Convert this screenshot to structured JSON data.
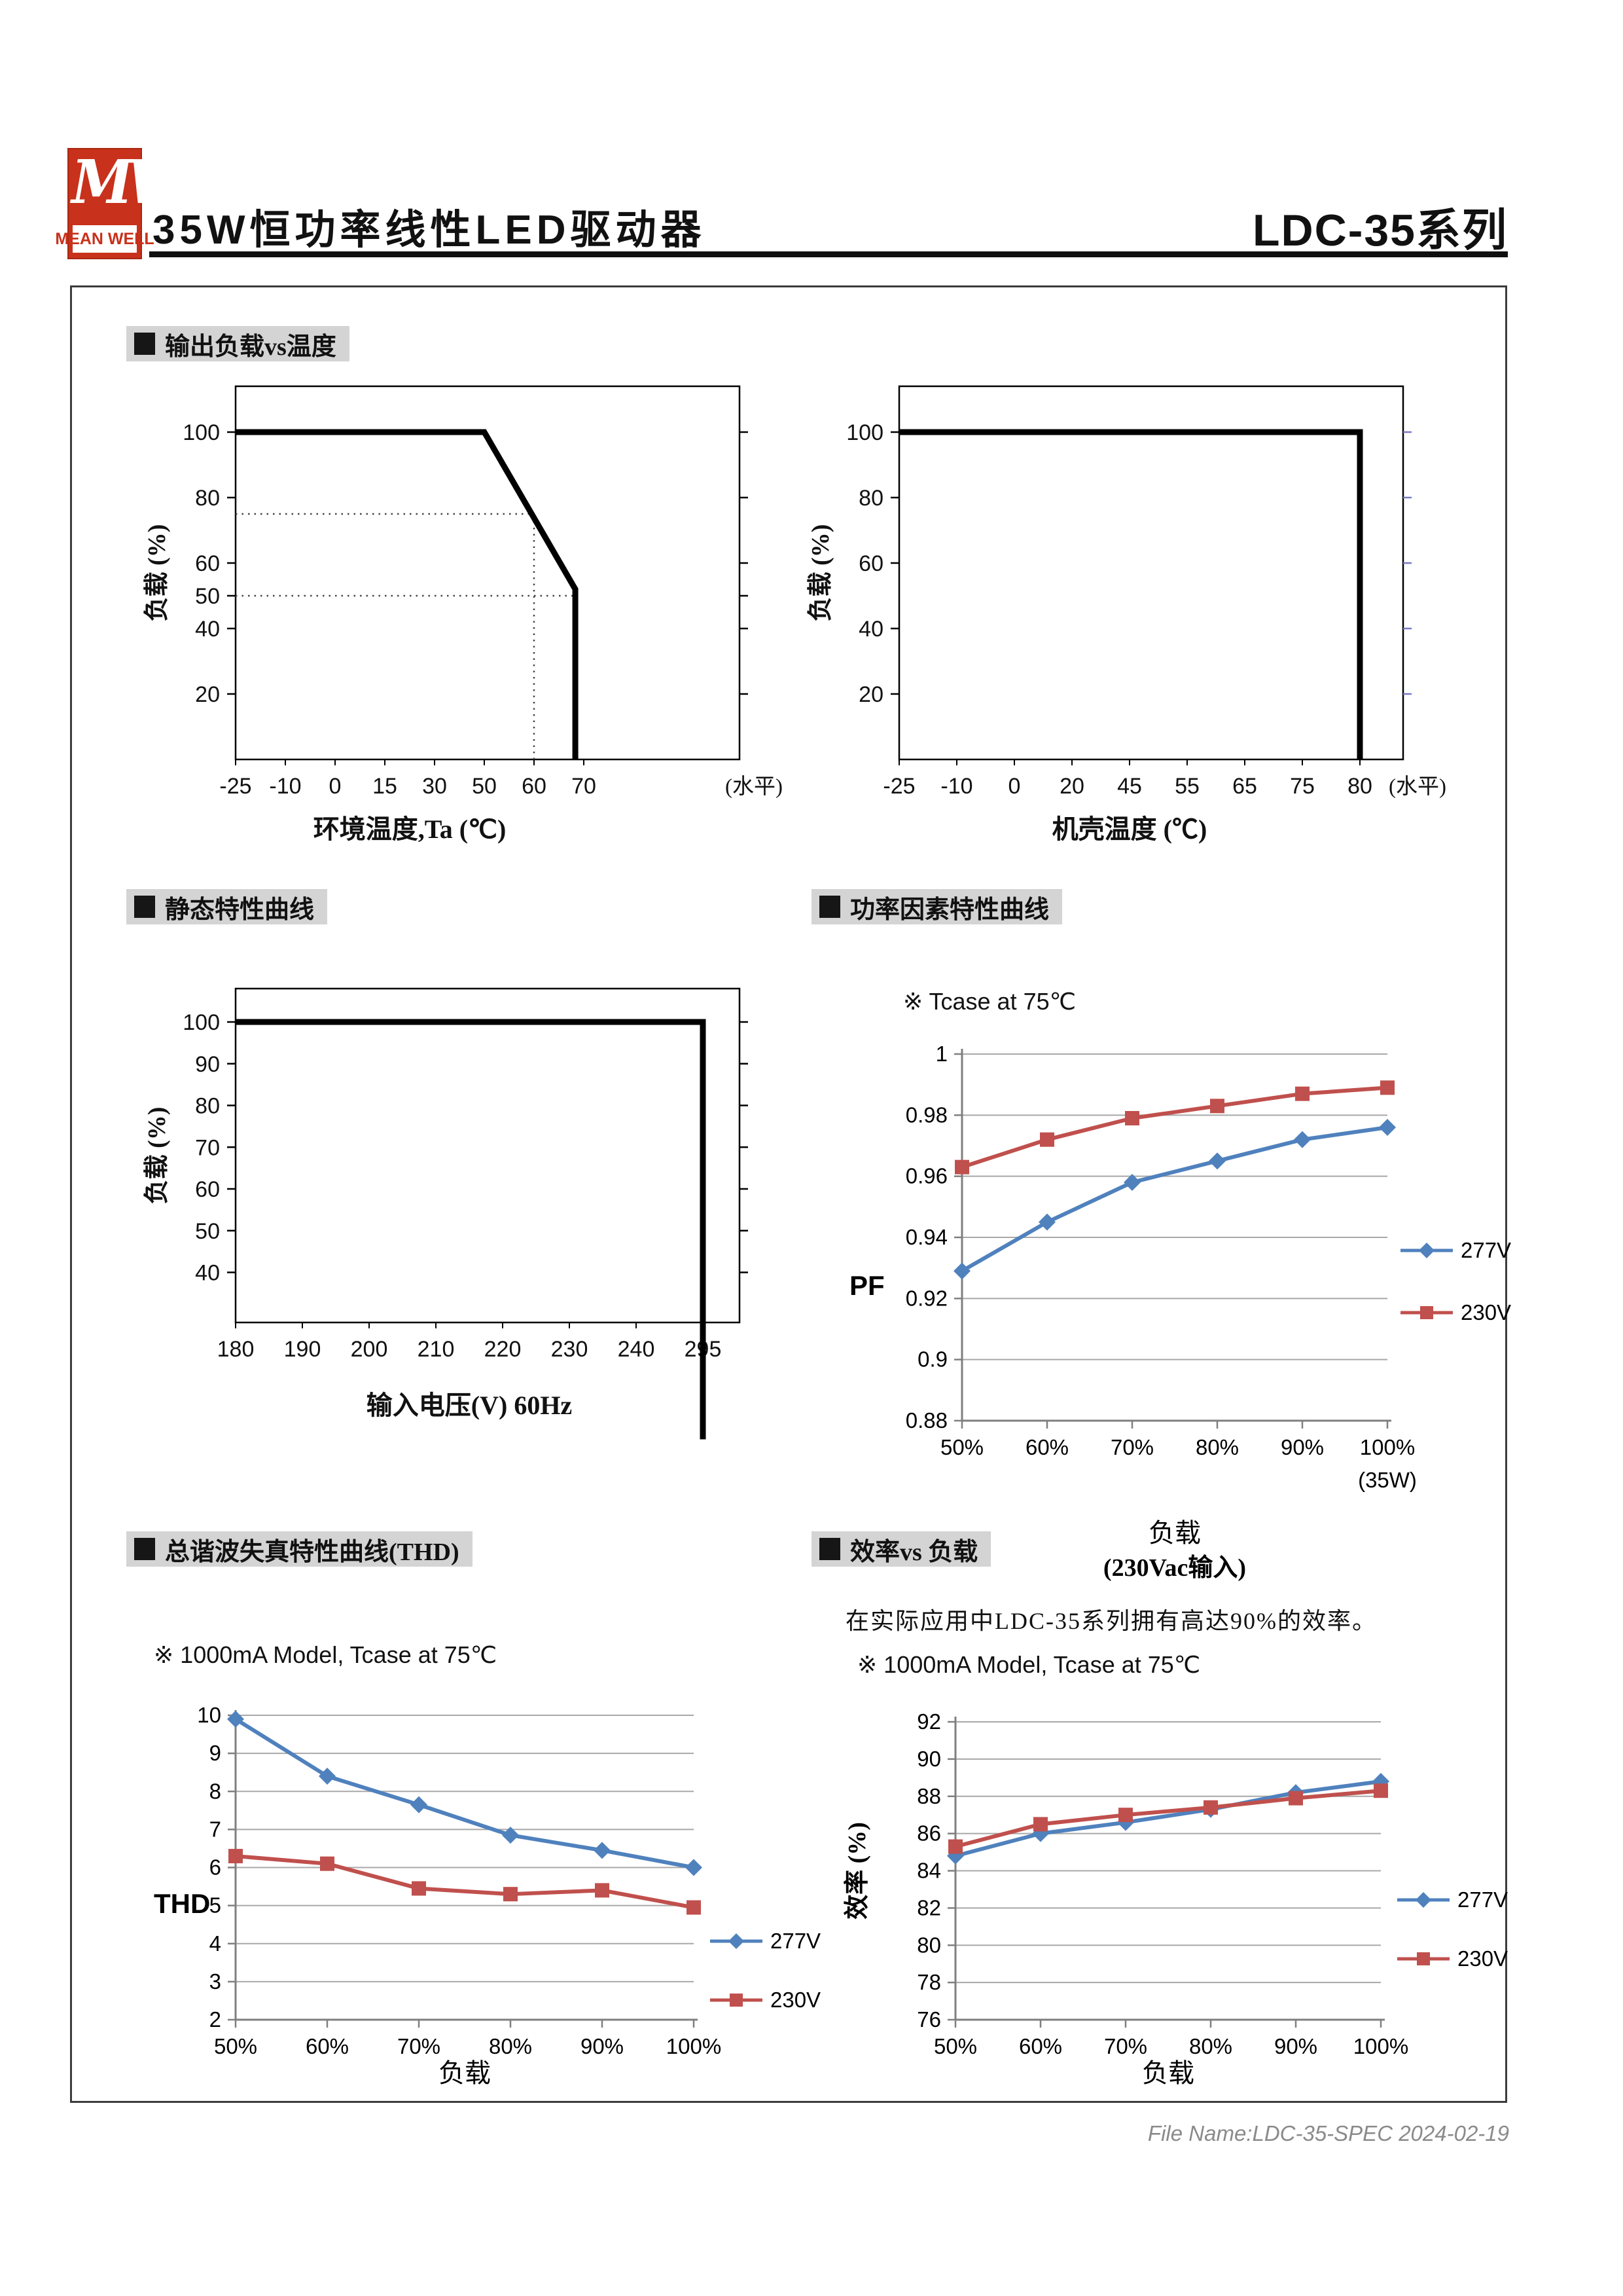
{
  "header": {
    "logo": {
      "mw": "MW",
      "brand": "MEAN WELL"
    },
    "title": "35W恒功率线性LED驱动器",
    "series_title": "LDC-35系列"
  },
  "sections": [
    {
      "label": "输出负载vs温度"
    },
    {
      "label": "静态特性曲线"
    },
    {
      "label": "功率因素特性曲线"
    },
    {
      "label": "总谐波失真特性曲线(THD)"
    },
    {
      "label": "效率vs 负载"
    }
  ],
  "efficiency_intro": "在实际应用中LDC-35系列拥有高达90%的效率。",
  "footer": {
    "text": "File Name:LDC-35-SPEC  2024-02-19"
  },
  "colors": {
    "series_blue": "#4F81BD",
    "series_red": "#C0504D",
    "grid": "#A8A8A8",
    "axis": "#7F7F7F",
    "logo_red": "#C8311B",
    "label_bg": "#D4D4D4",
    "case_right_ticks_blue": "#7878C8"
  },
  "chart_data": [
    {
      "id": "load_vs_ambient",
      "type": "line",
      "xlabel": "环境温度,Ta (℃)",
      "ylabel": "负载 (%)",
      "x_ticks": [
        "-25",
        "-10",
        "0",
        "15",
        "30",
        "50",
        "60",
        "70"
      ],
      "x_suffix": "(水平)",
      "y_ticks": [
        20,
        40,
        50,
        60,
        80,
        100
      ],
      "ylim": [
        0,
        114
      ],
      "series": [
        {
          "name": "derating-limit",
          "color": "#000000",
          "points": [
            [
              0,
              100
            ],
            [
              5,
              100
            ],
            [
              6.83,
              52
            ],
            [
              6.83,
              0
            ]
          ]
        }
      ],
      "guides": {
        "horizontal": [
          {
            "y": 75,
            "to_x_index": 6
          },
          {
            "y": 50,
            "to_x_index": 6.83
          }
        ],
        "vertical": [
          {
            "x_index": 6,
            "to_y": 75
          }
        ]
      }
    },
    {
      "id": "load_vs_case",
      "type": "line",
      "xlabel": "机壳温度 (℃)",
      "ylabel": "负载 (%)",
      "x_ticks": [
        "-25",
        "-10",
        "0",
        "20",
        "45",
        "55",
        "65",
        "75",
        "80"
      ],
      "x_suffix": "(水平)",
      "y_ticks": [
        20,
        40,
        60,
        80,
        100
      ],
      "ylim": [
        0,
        114
      ],
      "series": [
        {
          "name": "derating-limit",
          "color": "#000000",
          "points": [
            [
              0,
              100
            ],
            [
              8,
              100
            ],
            [
              8,
              0
            ]
          ]
        }
      ]
    },
    {
      "id": "static_characteristic",
      "type": "line",
      "xlabel": "输入电压(V) 60Hz",
      "ylabel": "负载 (%)",
      "x_ticks": [
        "180",
        "190",
        "200",
        "210",
        "220",
        "230",
        "240",
        "295"
      ],
      "y_ticks": [
        40,
        50,
        60,
        70,
        80,
        90,
        100
      ],
      "ylim": [
        28,
        108
      ],
      "series": [
        {
          "name": "operating-range",
          "color": "#000000",
          "points": [
            [
              0,
              100
            ],
            [
              7,
              100
            ],
            [
              7,
              0
            ]
          ]
        }
      ]
    },
    {
      "id": "pf",
      "type": "line",
      "note": "※ Tcase at 75℃",
      "ylabel": "PF",
      "xlabel_lines": [
        "负载",
        "(230Vac输入)"
      ],
      "x_ticks": [
        "50%",
        "60%",
        "70%",
        "80%",
        "90%",
        "100%"
      ],
      "x_last_sub": "(35W)",
      "y_tick_labels": [
        "0.88",
        "0.9",
        "0.92",
        "0.94",
        "0.96",
        "0.98",
        "1"
      ],
      "ylim": [
        0.88,
        1
      ],
      "legend_position": "right",
      "series": [
        {
          "name": "277V",
          "color": "#4F81BD",
          "marker": "diamond",
          "values": [
            0.929,
            0.945,
            0.958,
            0.965,
            0.972,
            0.976
          ]
        },
        {
          "name": "230V",
          "color": "#C0504D",
          "marker": "square",
          "values": [
            0.963,
            0.972,
            0.979,
            0.983,
            0.987,
            0.989
          ]
        }
      ]
    },
    {
      "id": "thd",
      "type": "line",
      "note": "※ 1000mA Model, Tcase at 75℃",
      "ylabel": "THD",
      "xlabel": "负载",
      "x_ticks": [
        "50%",
        "60%",
        "70%",
        "80%",
        "90%",
        "100%"
      ],
      "y_tick_labels": [
        "2",
        "3",
        "4",
        "5",
        "6",
        "7",
        "8",
        "9",
        "10"
      ],
      "ylim": [
        2,
        10
      ],
      "legend_position": "right",
      "series": [
        {
          "name": "277V",
          "color": "#4F81BD",
          "marker": "diamond",
          "values": [
            9.9,
            8.4,
            7.65,
            6.85,
            6.45,
            6.0
          ]
        },
        {
          "name": "230V",
          "color": "#C0504D",
          "marker": "square",
          "values": [
            6.3,
            6.1,
            5.45,
            5.3,
            5.4,
            4.95
          ]
        }
      ]
    },
    {
      "id": "efficiency",
      "type": "line",
      "note": "※ 1000mA Model, Tcase at 75℃",
      "ylabel": "效率 (%)",
      "xlabel": "负载",
      "x_ticks": [
        "50%",
        "60%",
        "70%",
        "80%",
        "90%",
        "100%"
      ],
      "y_tick_labels": [
        "76",
        "78",
        "80",
        "82",
        "84",
        "86",
        "88",
        "90",
        "92"
      ],
      "ylim": [
        76,
        92
      ],
      "legend_position": "right",
      "series": [
        {
          "name": "277V",
          "color": "#4F81BD",
          "marker": "diamond",
          "values": [
            84.8,
            86.0,
            86.6,
            87.3,
            88.2,
            88.8
          ]
        },
        {
          "name": "230V",
          "color": "#C0504D",
          "marker": "square",
          "values": [
            85.3,
            86.5,
            87.0,
            87.4,
            87.9,
            88.3
          ]
        }
      ]
    }
  ]
}
